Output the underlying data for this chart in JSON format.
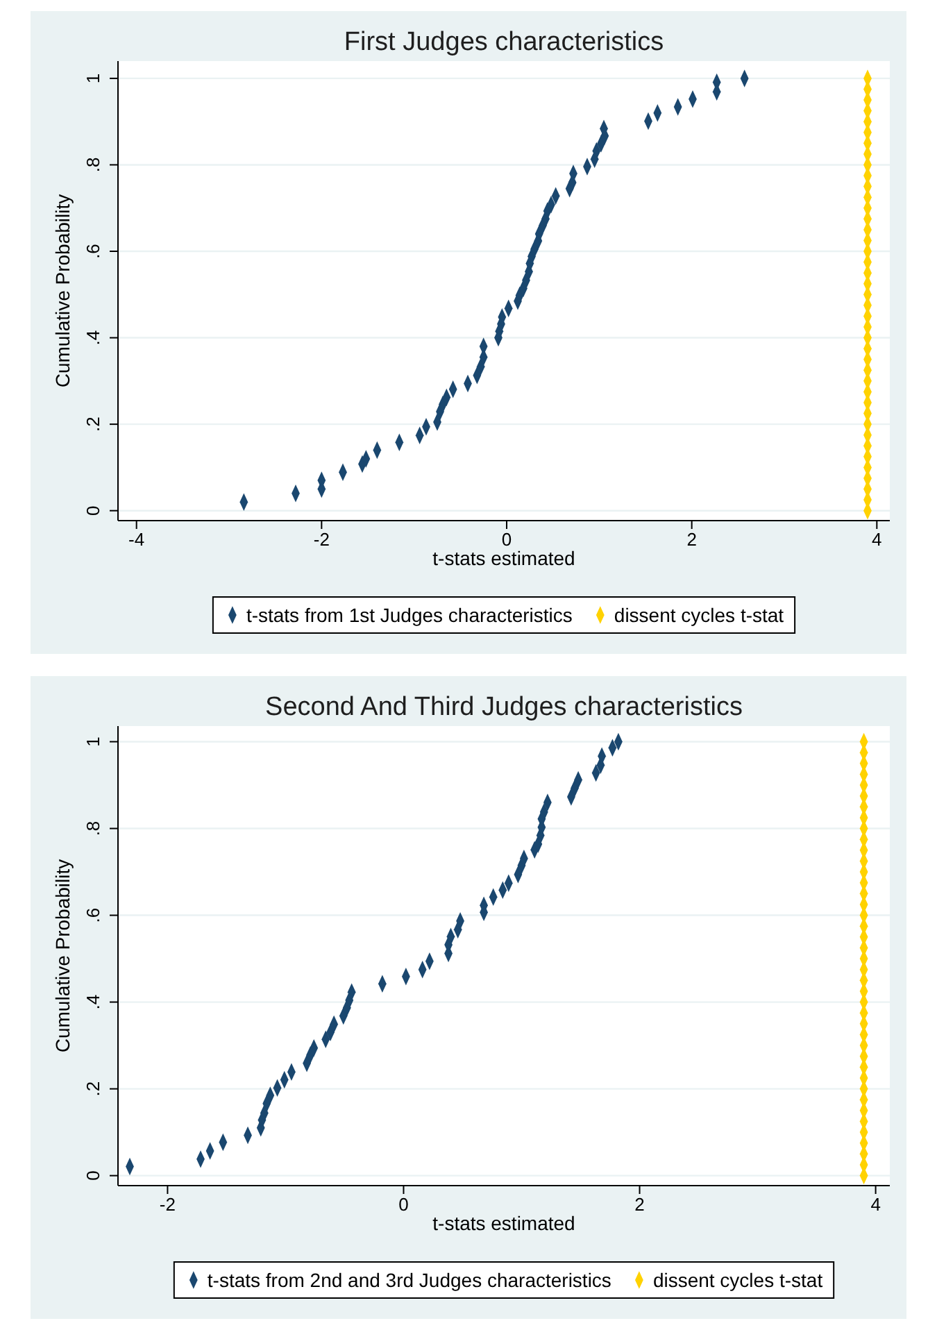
{
  "chart_data": [
    {
      "type": "scatter",
      "title": "First Judges characteristics",
      "xlabel": "t-stats estimated",
      "ylabel": "Cumulative Probability",
      "xlim": [
        -4.2,
        4.14
      ],
      "ylim": [
        -0.023,
        1.04
      ],
      "xticks": [
        -4,
        -2,
        0,
        2,
        4
      ],
      "yticks": [
        {
          "value": 0,
          "label": "0"
        },
        {
          "value": 0.2,
          "label": ".2"
        },
        {
          "value": 0.4,
          "label": ".4"
        },
        {
          "value": 0.6,
          "label": ".6"
        },
        {
          "value": 0.8,
          "label": ".8"
        },
        {
          "value": 1,
          "label": "1"
        }
      ],
      "grid": "y",
      "legend": "bottom",
      "marker": "diamond",
      "series": [
        {
          "name": "t-stats from 1st Judges characteristics",
          "color": "#1a476f",
          "x": [
            -2.84,
            -2.28,
            -2.0,
            -2.0,
            -1.77,
            -1.56,
            -1.52,
            -1.4,
            -1.16,
            -0.94,
            -0.87,
            -0.75,
            -0.72,
            -0.69,
            -0.65,
            -0.58,
            -0.42,
            -0.32,
            -0.28,
            -0.25,
            -0.25,
            -0.09,
            -0.08,
            -0.06,
            -0.05,
            0.02,
            0.12,
            0.14,
            0.18,
            0.21,
            0.24,
            0.25,
            0.27,
            0.3,
            0.34,
            0.35,
            0.39,
            0.42,
            0.44,
            0.48,
            0.53,
            0.68,
            0.71,
            0.72,
            0.87,
            0.95,
            0.97,
            1.02,
            1.06,
            1.05,
            1.53,
            1.63,
            1.85,
            2.01,
            2.27,
            2.27,
            2.57
          ],
          "values": [
            0.02,
            0.04,
            0.05,
            0.07,
            0.089,
            0.108,
            0.12,
            0.14,
            0.158,
            0.174,
            0.194,
            0.205,
            0.229,
            0.246,
            0.262,
            0.281,
            0.294,
            0.313,
            0.333,
            0.355,
            0.38,
            0.4,
            0.415,
            0.432,
            0.448,
            0.468,
            0.485,
            0.498,
            0.514,
            0.533,
            0.553,
            0.572,
            0.588,
            0.605,
            0.624,
            0.64,
            0.66,
            0.675,
            0.693,
            0.708,
            0.728,
            0.745,
            0.759,
            0.78,
            0.796,
            0.813,
            0.832,
            0.849,
            0.867,
            0.884,
            0.901,
            0.92,
            0.934,
            0.952,
            0.969,
            0.991,
            1.0
          ]
        },
        {
          "name": "dissent cycles t-stat",
          "color": "#ffd200",
          "x": [
            3.9,
            3.9,
            3.9,
            3.9,
            3.9,
            3.9,
            3.9,
            3.9,
            3.9,
            3.9,
            3.9,
            3.9,
            3.9,
            3.9,
            3.9,
            3.9,
            3.9,
            3.9,
            3.9,
            3.9,
            3.9,
            3.9,
            3.9,
            3.9,
            3.9,
            3.9,
            3.9,
            3.9,
            3.9,
            3.9,
            3.9,
            3.9,
            3.9,
            3.9,
            3.9,
            3.9,
            3.9,
            3.9,
            3.9,
            3.9,
            3.9
          ],
          "values": [
            0,
            0.025,
            0.05,
            0.075,
            0.1,
            0.125,
            0.15,
            0.175,
            0.2,
            0.225,
            0.25,
            0.275,
            0.3,
            0.325,
            0.35,
            0.375,
            0.4,
            0.425,
            0.45,
            0.475,
            0.5,
            0.525,
            0.55,
            0.575,
            0.6,
            0.625,
            0.65,
            0.675,
            0.7,
            0.725,
            0.75,
            0.775,
            0.8,
            0.825,
            0.85,
            0.875,
            0.9,
            0.925,
            0.95,
            0.975,
            1
          ]
        }
      ]
    },
    {
      "type": "scatter",
      "title": "Second And Third Judges characteristics",
      "xlabel": "t-stats estimated",
      "ylabel": "Cumulative Probability",
      "xlim": [
        -2.42,
        4.12
      ],
      "ylim": [
        -0.023,
        1.036
      ],
      "xticks": [
        -2,
        0,
        2,
        4
      ],
      "yticks": [
        {
          "value": 0,
          "label": "0"
        },
        {
          "value": 0.2,
          "label": ".2"
        },
        {
          "value": 0.4,
          "label": ".4"
        },
        {
          "value": 0.6,
          "label": ".6"
        },
        {
          "value": 0.8,
          "label": ".8"
        },
        {
          "value": 1,
          "label": "1"
        }
      ],
      "grid": "y",
      "legend": "bottom",
      "marker": "diamond",
      "series": [
        {
          "name": "t-stats from 2nd and 3rd Judges characteristics",
          "color": "#1a476f",
          "x": [
            -2.32,
            -1.72,
            -1.64,
            -1.53,
            -1.32,
            -1.21,
            -1.2,
            -1.18,
            -1.16,
            -1.13,
            -1.07,
            -1.01,
            -0.95,
            -0.82,
            -0.79,
            -0.76,
            -0.66,
            -0.62,
            -0.59,
            -0.51,
            -0.48,
            -0.46,
            -0.44,
            -0.18,
            0.02,
            0.16,
            0.22,
            0.38,
            0.38,
            0.4,
            0.46,
            0.48,
            0.68,
            0.68,
            0.76,
            0.84,
            0.89,
            0.97,
            1.0,
            1.02,
            1.11,
            1.14,
            1.16,
            1.17,
            1.17,
            1.19,
            1.22,
            1.42,
            1.45,
            1.48,
            1.63,
            1.67,
            1.68,
            1.77,
            1.82
          ],
          "values": [
            0.021,
            0.038,
            0.057,
            0.077,
            0.093,
            0.11,
            0.128,
            0.144,
            0.166,
            0.185,
            0.202,
            0.221,
            0.239,
            0.259,
            0.278,
            0.294,
            0.314,
            0.33,
            0.349,
            0.368,
            0.387,
            0.404,
            0.423,
            0.442,
            0.459,
            0.475,
            0.494,
            0.512,
            0.532,
            0.551,
            0.567,
            0.587,
            0.607,
            0.623,
            0.642,
            0.658,
            0.674,
            0.694,
            0.715,
            0.731,
            0.751,
            0.764,
            0.784,
            0.803,
            0.822,
            0.838,
            0.86,
            0.873,
            0.893,
            0.912,
            0.928,
            0.946,
            0.967,
            0.986,
            1.0
          ]
        },
        {
          "name": "dissent cycles t-stat",
          "color": "#ffd200",
          "x": [
            3.9,
            3.9,
            3.9,
            3.9,
            3.9,
            3.9,
            3.9,
            3.9,
            3.9,
            3.9,
            3.9,
            3.9,
            3.9,
            3.9,
            3.9,
            3.9,
            3.9,
            3.9,
            3.9,
            3.9,
            3.9,
            3.9,
            3.9,
            3.9,
            3.9,
            3.9,
            3.9,
            3.9,
            3.9,
            3.9,
            3.9,
            3.9,
            3.9,
            3.9,
            3.9,
            3.9,
            3.9,
            3.9,
            3.9,
            3.9,
            3.9
          ],
          "values": [
            0,
            0.025,
            0.05,
            0.075,
            0.1,
            0.125,
            0.15,
            0.175,
            0.2,
            0.225,
            0.25,
            0.275,
            0.3,
            0.325,
            0.35,
            0.375,
            0.4,
            0.425,
            0.45,
            0.475,
            0.5,
            0.525,
            0.55,
            0.575,
            0.6,
            0.625,
            0.65,
            0.675,
            0.7,
            0.725,
            0.75,
            0.775,
            0.8,
            0.825,
            0.85,
            0.875,
            0.9,
            0.925,
            0.95,
            0.975,
            1
          ]
        }
      ]
    }
  ]
}
